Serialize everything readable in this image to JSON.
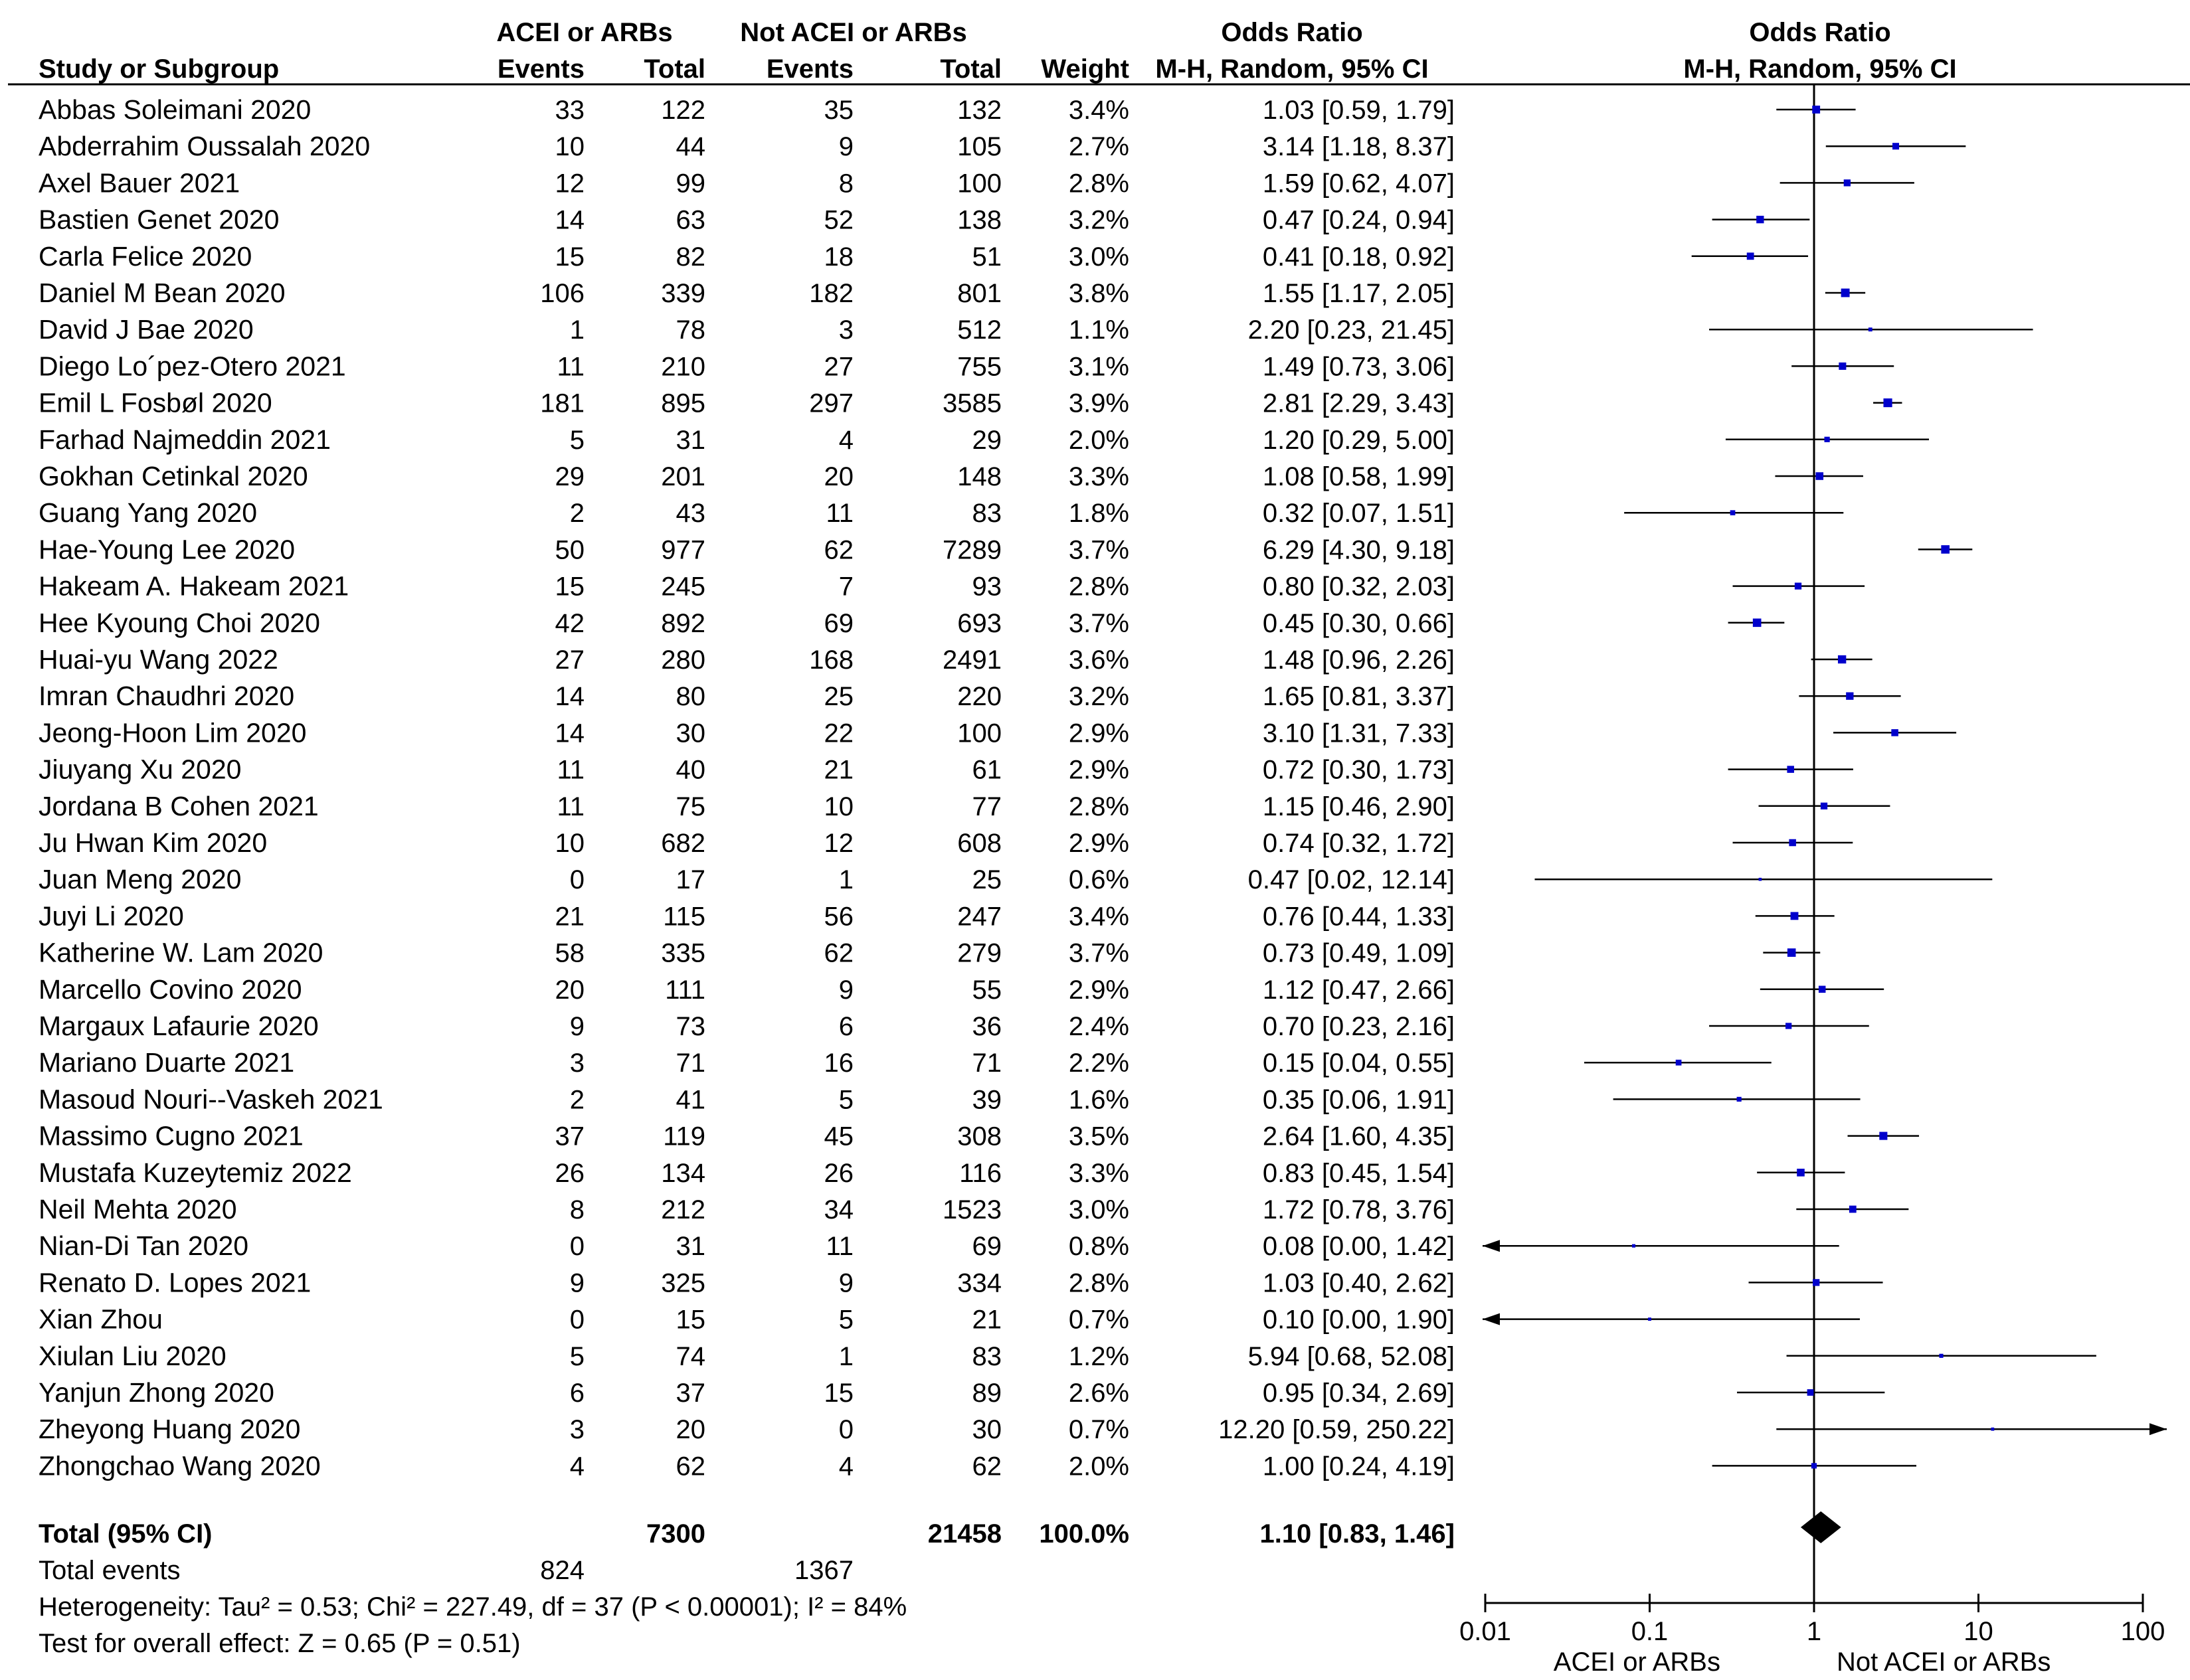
{
  "chart_data": {
    "type": "forest",
    "header": {
      "group1": "ACEI or ARBs",
      "group2": "Not ACEI or ARBs",
      "study_col": "Study or Subgroup",
      "events": "Events",
      "total": "Total",
      "weight": "Weight",
      "or_title": "Odds Ratio",
      "or_method": "M-H, Random, 95% CI"
    },
    "studies": [
      {
        "name": "Abbas Soleimani 2020",
        "e1": "33",
        "t1": "122",
        "e2": "35",
        "t2": "132",
        "weight": "3.4%",
        "ci_text": "1.03 [0.59, 1.79]",
        "or": 1.03,
        "lo": 0.59,
        "hi": 1.79
      },
      {
        "name": "Abderrahim Oussalah 2020",
        "e1": "10",
        "t1": "44",
        "e2": "9",
        "t2": "105",
        "weight": "2.7%",
        "ci_text": "3.14 [1.18, 8.37]",
        "or": 3.14,
        "lo": 1.18,
        "hi": 8.37
      },
      {
        "name": "Axel Bauer 2021",
        "e1": "12",
        "t1": "99",
        "e2": "8",
        "t2": "100",
        "weight": "2.8%",
        "ci_text": "1.59 [0.62, 4.07]",
        "or": 1.59,
        "lo": 0.62,
        "hi": 4.07
      },
      {
        "name": "Bastien Genet 2020",
        "e1": "14",
        "t1": "63",
        "e2": "52",
        "t2": "138",
        "weight": "3.2%",
        "ci_text": "0.47 [0.24, 0.94]",
        "or": 0.47,
        "lo": 0.24,
        "hi": 0.94
      },
      {
        "name": "Carla Felice 2020",
        "e1": "15",
        "t1": "82",
        "e2": "18",
        "t2": "51",
        "weight": "3.0%",
        "ci_text": "0.41 [0.18, 0.92]",
        "or": 0.41,
        "lo": 0.18,
        "hi": 0.92
      },
      {
        "name": "Daniel M Bean 2020",
        "e1": "106",
        "t1": "339",
        "e2": "182",
        "t2": "801",
        "weight": "3.8%",
        "ci_text": "1.55 [1.17, 2.05]",
        "or": 1.55,
        "lo": 1.17,
        "hi": 2.05
      },
      {
        "name": "David J Bae 2020",
        "e1": "1",
        "t1": "78",
        "e2": "3",
        "t2": "512",
        "weight": "1.1%",
        "ci_text": "2.20 [0.23, 21.45]",
        "or": 2.2,
        "lo": 0.23,
        "hi": 21.45
      },
      {
        "name": "Diego Lo´pez-Otero 2021",
        "e1": "11",
        "t1": "210",
        "e2": "27",
        "t2": "755",
        "weight": "3.1%",
        "ci_text": "1.49 [0.73, 3.06]",
        "or": 1.49,
        "lo": 0.73,
        "hi": 3.06
      },
      {
        "name": "Emil L Fosbøl 2020",
        "e1": "181",
        "t1": "895",
        "e2": "297",
        "t2": "3585",
        "weight": "3.9%",
        "ci_text": "2.81 [2.29, 3.43]",
        "or": 2.81,
        "lo": 2.29,
        "hi": 3.43
      },
      {
        "name": "Farhad Najmeddin 2021",
        "e1": "5",
        "t1": "31",
        "e2": "4",
        "t2": "29",
        "weight": "2.0%",
        "ci_text": "1.20 [0.29, 5.00]",
        "or": 1.2,
        "lo": 0.29,
        "hi": 5.0
      },
      {
        "name": "Gokhan Cetinkal 2020",
        "e1": "29",
        "t1": "201",
        "e2": "20",
        "t2": "148",
        "weight": "3.3%",
        "ci_text": "1.08 [0.58, 1.99]",
        "or": 1.08,
        "lo": 0.58,
        "hi": 1.99
      },
      {
        "name": "Guang Yang 2020",
        "e1": "2",
        "t1": "43",
        "e2": "11",
        "t2": "83",
        "weight": "1.8%",
        "ci_text": "0.32 [0.07, 1.51]",
        "or": 0.32,
        "lo": 0.07,
        "hi": 1.51
      },
      {
        "name": "Hae-Young Lee 2020",
        "e1": "50",
        "t1": "977",
        "e2": "62",
        "t2": "7289",
        "weight": "3.7%",
        "ci_text": "6.29 [4.30, 9.18]",
        "or": 6.29,
        "lo": 4.3,
        "hi": 9.18
      },
      {
        "name": "Hakeam A. Hakeam 2021",
        "e1": "15",
        "t1": "245",
        "e2": "7",
        "t2": "93",
        "weight": "2.8%",
        "ci_text": "0.80 [0.32, 2.03]",
        "or": 0.8,
        "lo": 0.32,
        "hi": 2.03
      },
      {
        "name": "Hee Kyoung Choi 2020",
        "e1": "42",
        "t1": "892",
        "e2": "69",
        "t2": "693",
        "weight": "3.7%",
        "ci_text": "0.45 [0.30, 0.66]",
        "or": 0.45,
        "lo": 0.3,
        "hi": 0.66
      },
      {
        "name": "Huai-yu Wang 2022",
        "e1": "27",
        "t1": "280",
        "e2": "168",
        "t2": "2491",
        "weight": "3.6%",
        "ci_text": "1.48 [0.96, 2.26]",
        "or": 1.48,
        "lo": 0.96,
        "hi": 2.26
      },
      {
        "name": "Imran Chaudhri 2020",
        "e1": "14",
        "t1": "80",
        "e2": "25",
        "t2": "220",
        "weight": "3.2%",
        "ci_text": "1.65 [0.81, 3.37]",
        "or": 1.65,
        "lo": 0.81,
        "hi": 3.37
      },
      {
        "name": "Jeong-Hoon Lim 2020",
        "e1": "14",
        "t1": "30",
        "e2": "22",
        "t2": "100",
        "weight": "2.9%",
        "ci_text": "3.10 [1.31, 7.33]",
        "or": 3.1,
        "lo": 1.31,
        "hi": 7.33
      },
      {
        "name": "Jiuyang Xu 2020",
        "e1": "11",
        "t1": "40",
        "e2": "21",
        "t2": "61",
        "weight": "2.9%",
        "ci_text": "0.72 [0.30, 1.73]",
        "or": 0.72,
        "lo": 0.3,
        "hi": 1.73
      },
      {
        "name": "Jordana B Cohen 2021",
        "e1": "11",
        "t1": "75",
        "e2": "10",
        "t2": "77",
        "weight": "2.8%",
        "ci_text": "1.15 [0.46, 2.90]",
        "or": 1.15,
        "lo": 0.46,
        "hi": 2.9
      },
      {
        "name": "Ju Hwan Kim 2020",
        "e1": "10",
        "t1": "682",
        "e2": "12",
        "t2": "608",
        "weight": "2.9%",
        "ci_text": "0.74 [0.32, 1.72]",
        "or": 0.74,
        "lo": 0.32,
        "hi": 1.72
      },
      {
        "name": "Juan Meng 2020",
        "e1": "0",
        "t1": "17",
        "e2": "1",
        "t2": "25",
        "weight": "0.6%",
        "ci_text": "0.47 [0.02, 12.14]",
        "or": 0.47,
        "lo": 0.02,
        "hi": 12.14
      },
      {
        "name": "Juyi Li 2020",
        "e1": "21",
        "t1": "115",
        "e2": "56",
        "t2": "247",
        "weight": "3.4%",
        "ci_text": "0.76 [0.44, 1.33]",
        "or": 0.76,
        "lo": 0.44,
        "hi": 1.33
      },
      {
        "name": "Katherine W. Lam 2020",
        "e1": "58",
        "t1": "335",
        "e2": "62",
        "t2": "279",
        "weight": "3.7%",
        "ci_text": "0.73 [0.49, 1.09]",
        "or": 0.73,
        "lo": 0.49,
        "hi": 1.09
      },
      {
        "name": "Marcello Covino 2020",
        "e1": "20",
        "t1": "111",
        "e2": "9",
        "t2": "55",
        "weight": "2.9%",
        "ci_text": "1.12 [0.47, 2.66]",
        "or": 1.12,
        "lo": 0.47,
        "hi": 2.66
      },
      {
        "name": "Margaux Lafaurie 2020",
        "e1": "9",
        "t1": "73",
        "e2": "6",
        "t2": "36",
        "weight": "2.4%",
        "ci_text": "0.70 [0.23, 2.16]",
        "or": 0.7,
        "lo": 0.23,
        "hi": 2.16
      },
      {
        "name": "Mariano Duarte 2021",
        "e1": "3",
        "t1": "71",
        "e2": "16",
        "t2": "71",
        "weight": "2.2%",
        "ci_text": "0.15 [0.04, 0.55]",
        "or": 0.15,
        "lo": 0.04,
        "hi": 0.55
      },
      {
        "name": "Masoud Nouri--Vaskeh 2021",
        "e1": "2",
        "t1": "41",
        "e2": "5",
        "t2": "39",
        "weight": "1.6%",
        "ci_text": "0.35 [0.06, 1.91]",
        "or": 0.35,
        "lo": 0.06,
        "hi": 1.91
      },
      {
        "name": "Massimo Cugno 2021",
        "e1": "37",
        "t1": "119",
        "e2": "45",
        "t2": "308",
        "weight": "3.5%",
        "ci_text": "2.64 [1.60, 4.35]",
        "or": 2.64,
        "lo": 1.6,
        "hi": 4.35
      },
      {
        "name": "Mustafa Kuzeytemiz 2022",
        "e1": "26",
        "t1": "134",
        "e2": "26",
        "t2": "116",
        "weight": "3.3%",
        "ci_text": "0.83 [0.45, 1.54]",
        "or": 0.83,
        "lo": 0.45,
        "hi": 1.54
      },
      {
        "name": "Neil Mehta 2020",
        "e1": "8",
        "t1": "212",
        "e2": "34",
        "t2": "1523",
        "weight": "3.0%",
        "ci_text": "1.72 [0.78, 3.76]",
        "or": 1.72,
        "lo": 0.78,
        "hi": 3.76
      },
      {
        "name": "Nian-Di Tan 2020",
        "e1": "0",
        "t1": "31",
        "e2": "11",
        "t2": "69",
        "weight": "0.8%",
        "ci_text": "0.08 [0.00, 1.42]",
        "or": 0.08,
        "lo": 0.0,
        "hi": 1.42
      },
      {
        "name": "Renato D. Lopes 2021",
        "e1": "9",
        "t1": "325",
        "e2": "9",
        "t2": "334",
        "weight": "2.8%",
        "ci_text": "1.03 [0.40, 2.62]",
        "or": 1.03,
        "lo": 0.4,
        "hi": 2.62
      },
      {
        "name": "Xian Zhou",
        "e1": "0",
        "t1": "15",
        "e2": "5",
        "t2": "21",
        "weight": "0.7%",
        "ci_text": "0.10 [0.00, 1.90]",
        "or": 0.1,
        "lo": 0.0,
        "hi": 1.9
      },
      {
        "name": "Xiulan Liu 2020",
        "e1": "5",
        "t1": "74",
        "e2": "1",
        "t2": "83",
        "weight": "1.2%",
        "ci_text": "5.94 [0.68, 52.08]",
        "or": 5.94,
        "lo": 0.68,
        "hi": 52.08
      },
      {
        "name": "Yanjun Zhong 2020",
        "e1": "6",
        "t1": "37",
        "e2": "15",
        "t2": "89",
        "weight": "2.6%",
        "ci_text": "0.95 [0.34, 2.69]",
        "or": 0.95,
        "lo": 0.34,
        "hi": 2.69
      },
      {
        "name": "Zheyong Huang 2020",
        "e1": "3",
        "t1": "20",
        "e2": "0",
        "t2": "30",
        "weight": "0.7%",
        "ci_text": "12.20 [0.59, 250.22]",
        "or": 12.2,
        "lo": 0.59,
        "hi": 250.22
      },
      {
        "name": "Zhongchao Wang 2020",
        "e1": "4",
        "t1": "62",
        "e2": "4",
        "t2": "62",
        "weight": "2.0%",
        "ci_text": "1.00 [0.24, 4.19]",
        "or": 1.0,
        "lo": 0.24,
        "hi": 4.19
      }
    ],
    "total": {
      "label": "Total (95% CI)",
      "t1": "7300",
      "t2": "21458",
      "weight": "100.0%",
      "ci_text": "1.10 [0.83, 1.46]",
      "or": 1.1,
      "lo": 0.83,
      "hi": 1.46
    },
    "total_events": {
      "label": "Total events",
      "e1": "824",
      "e2": "1367"
    },
    "heterogeneity": "Heterogeneity: Tau² = 0.53; Chi² = 227.49, df = 37 (P < 0.00001); I² = 84%",
    "overall_effect": "Test for overall effect: Z = 0.65 (P = 0.51)",
    "x_axis": {
      "scale": "log",
      "xlim": [
        0.01,
        100
      ],
      "ticks": [
        0.01,
        0.1,
        1,
        10,
        100
      ],
      "tick_labels": [
        "0.01",
        "0.1",
        "1",
        "10",
        "100"
      ],
      "left_label": "ACEI or ARBs",
      "right_label": "Not ACEI or ARBs"
    },
    "colors": {
      "point": "#0000cc",
      "line": "#000000"
    }
  }
}
